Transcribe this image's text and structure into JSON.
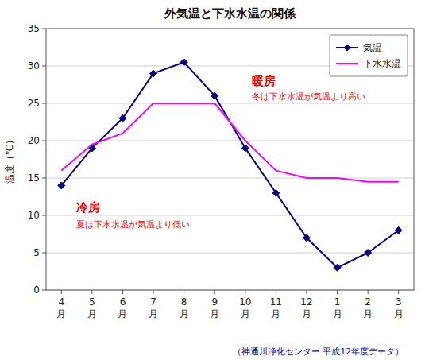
{
  "chart_data": {
    "type": "line",
    "title": "外気温と下水水温の関係",
    "ylabel": "温度（℃）",
    "categories": [
      "4\n月",
      "5\n月",
      "6\n月",
      "7\n月",
      "8\n月",
      "9\n月",
      "10\n月",
      "11\n月",
      "12\n月",
      "1\n月",
      "2\n月",
      "3\n月"
    ],
    "series": [
      {
        "name": "気温",
        "color": "#00008B",
        "marker": "diamond",
        "line_style": "solid",
        "values": [
          14,
          19,
          23,
          29,
          30.5,
          26,
          19,
          13,
          7,
          3,
          5,
          8
        ]
      },
      {
        "name": "下水水温",
        "color": "#FF00FF",
        "marker": "none",
        "line_style": "solid",
        "values": [
          16,
          19.5,
          21,
          25,
          25,
          25,
          20,
          16,
          15,
          15,
          14.5,
          14.5
        ]
      }
    ],
    "ylim": [
      0,
      35
    ],
    "yticks": [
      0,
      5,
      10,
      15,
      20,
      25,
      30,
      35
    ],
    "grid": true,
    "legend": "upper right",
    "annotations": [
      {
        "text": "冷房",
        "color": "red"
      },
      {
        "text": "夏は下水水温が気温より低い",
        "color": "red"
      },
      {
        "text": "暖房",
        "color": "red"
      },
      {
        "text": "冬は下水水温が気温より高い",
        "color": "red"
      },
      {
        "text": "（神通川浄化センター 平成12年度データ）",
        "color": "#0000CC"
      }
    ]
  }
}
